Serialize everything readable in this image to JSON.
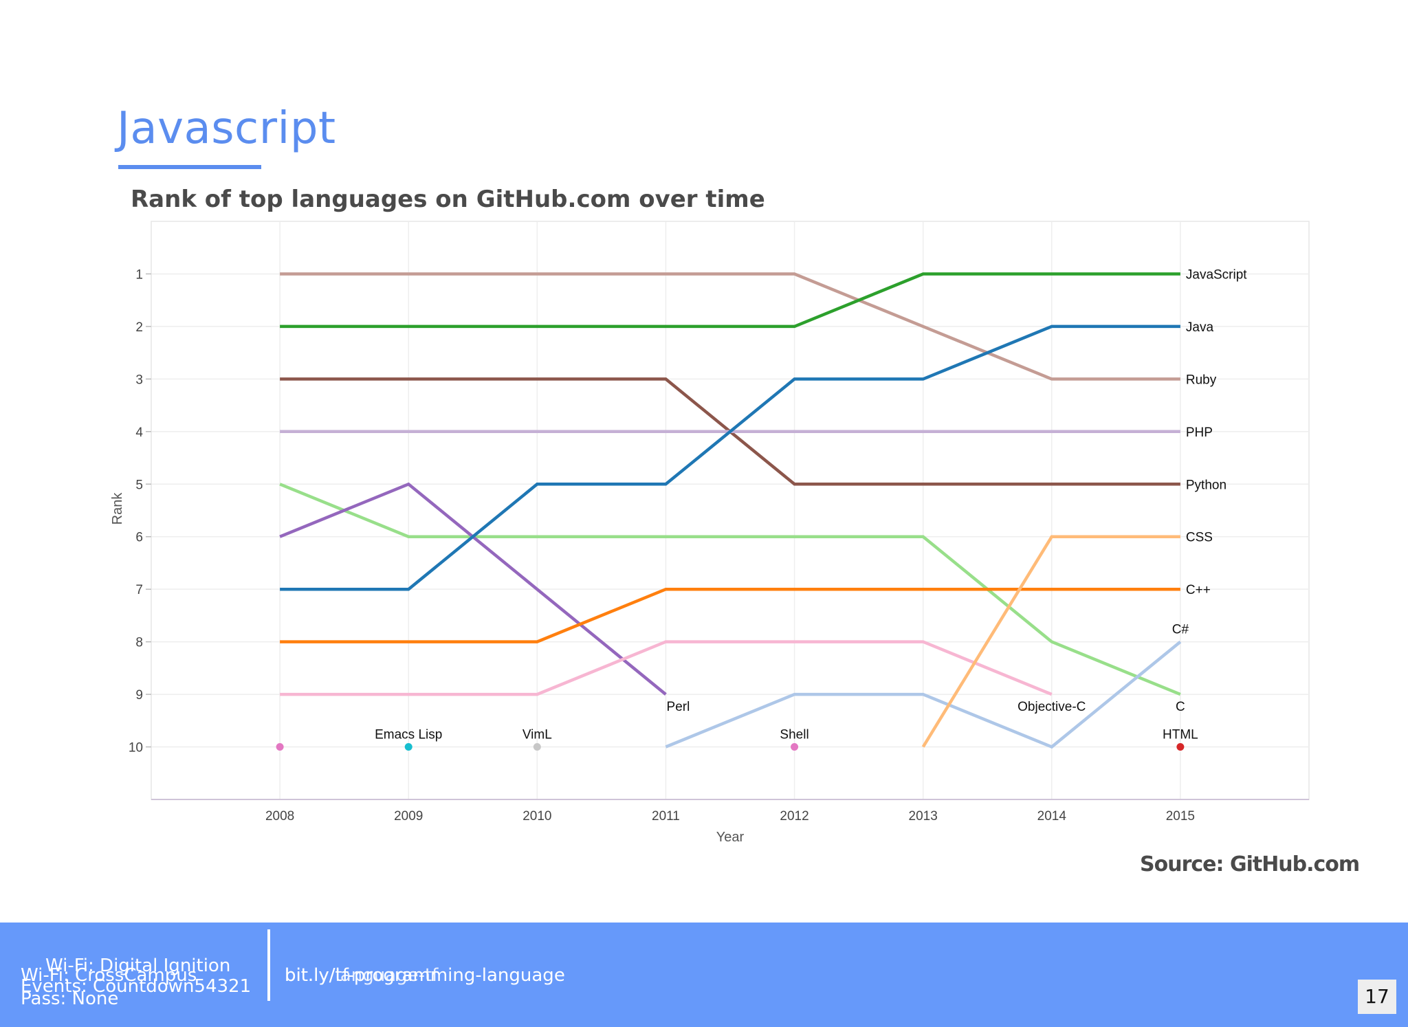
{
  "slide": {
    "title": "Javascript",
    "page_number": "17"
  },
  "footer": {
    "wifi_a": "Wi-Fi: Digital Ignition",
    "wifi_b": "Wi-Fi: CrossCampus",
    "pass_a": "Events: Countdown54321",
    "pass_b": "Pass: None",
    "link_a": "bit.ly/tf-programming-language",
    "link_b": "bit.ly/language-tf"
  },
  "source": "Source: GitHub.com",
  "chart_data": {
    "type": "line",
    "title": "Rank of top languages on GitHub.com over time",
    "xlabel": "Year",
    "ylabel": "Rank",
    "x": [
      2008,
      2009,
      2010,
      2011,
      2012,
      2013,
      2014,
      2015
    ],
    "yticks": [
      1,
      2,
      3,
      4,
      5,
      6,
      7,
      8,
      9,
      10
    ],
    "xlim": [
      2007,
      2016
    ],
    "ylim": [
      11,
      0
    ],
    "y_inverted": true,
    "grid": true,
    "series": [
      {
        "name": "Ruby",
        "color": "#c49c94",
        "points": [
          [
            2008,
            1
          ],
          [
            2009,
            1
          ],
          [
            2010,
            1
          ],
          [
            2011,
            1
          ],
          [
            2012,
            1
          ],
          [
            2013,
            2
          ],
          [
            2014,
            3
          ],
          [
            2015,
            3
          ]
        ]
      },
      {
        "name": "JavaScript",
        "color": "#2ca02c",
        "points": [
          [
            2008,
            2
          ],
          [
            2009,
            2
          ],
          [
            2010,
            2
          ],
          [
            2011,
            2
          ],
          [
            2012,
            2
          ],
          [
            2013,
            1
          ],
          [
            2014,
            1
          ],
          [
            2015,
            1
          ]
        ]
      },
      {
        "name": "Python",
        "color": "#8c564b",
        "points": [
          [
            2008,
            3
          ],
          [
            2009,
            3
          ],
          [
            2010,
            3
          ],
          [
            2011,
            3
          ],
          [
            2012,
            5
          ],
          [
            2013,
            5
          ],
          [
            2014,
            5
          ],
          [
            2015,
            5
          ]
        ]
      },
      {
        "name": "PHP",
        "color": "#c5b0d5",
        "points": [
          [
            2008,
            4
          ],
          [
            2009,
            4
          ],
          [
            2010,
            4
          ],
          [
            2011,
            4
          ],
          [
            2012,
            4
          ],
          [
            2013,
            4
          ],
          [
            2014,
            4
          ],
          [
            2015,
            4
          ]
        ]
      },
      {
        "name": "C",
        "color": "#98df8a",
        "points": [
          [
            2008,
            5
          ],
          [
            2009,
            6
          ],
          [
            2010,
            6
          ],
          [
            2011,
            6
          ],
          [
            2012,
            6
          ],
          [
            2013,
            6
          ],
          [
            2014,
            8
          ],
          [
            2015,
            9
          ]
        ]
      },
      {
        "name": "Perl",
        "color": "#9467bd",
        "points": [
          [
            2008,
            6
          ],
          [
            2009,
            5
          ],
          [
            2010,
            7
          ],
          [
            2011,
            9
          ]
        ]
      },
      {
        "name": "Java",
        "color": "#1f77b4",
        "points": [
          [
            2008,
            7
          ],
          [
            2009,
            7
          ],
          [
            2010,
            5
          ],
          [
            2011,
            5
          ],
          [
            2012,
            3
          ],
          [
            2013,
            3
          ],
          [
            2014,
            2
          ],
          [
            2015,
            2
          ]
        ]
      },
      {
        "name": "C++",
        "color": "#ff7f0e",
        "points": [
          [
            2008,
            8
          ],
          [
            2009,
            8
          ],
          [
            2010,
            8
          ],
          [
            2011,
            7
          ],
          [
            2012,
            7
          ],
          [
            2013,
            7
          ],
          [
            2014,
            7
          ],
          [
            2015,
            7
          ]
        ]
      },
      {
        "name": "Objective-C",
        "color": "#f7b6d2",
        "points": [
          [
            2008,
            9
          ],
          [
            2009,
            9
          ],
          [
            2010,
            9
          ],
          [
            2011,
            8
          ],
          [
            2012,
            8
          ],
          [
            2013,
            8
          ],
          [
            2014,
            9
          ]
        ]
      },
      {
        "name": "C#",
        "color": "#aec7e8",
        "points": [
          [
            2011,
            10
          ],
          [
            2012,
            9
          ],
          [
            2013,
            9
          ],
          [
            2014,
            10
          ],
          [
            2015,
            8
          ]
        ]
      },
      {
        "name": "CSS",
        "color": "#ffbb78",
        "points": [
          [
            2013,
            10
          ],
          [
            2014,
            6
          ],
          [
            2015,
            6
          ]
        ]
      }
    ],
    "points": [
      {
        "name": "Emacs Lisp",
        "x": 2009,
        "y": 10,
        "color": "#17becf"
      },
      {
        "name": "VimL",
        "x": 2010,
        "y": 10,
        "color": "#c7c7c7"
      },
      {
        "name": "Shell",
        "x": 2012,
        "y": 10,
        "color": "#e377c2"
      },
      {
        "name": "HTML",
        "x": 2015,
        "y": 10,
        "color": "#d62728"
      },
      {
        "name": "",
        "x": 2008,
        "y": 10,
        "color": "#e377c2"
      }
    ],
    "annotations": [
      {
        "text": "JavaScript",
        "x": 2015,
        "y": 1,
        "pos": "right"
      },
      {
        "text": "Java",
        "x": 2015,
        "y": 2,
        "pos": "right"
      },
      {
        "text": "Ruby",
        "x": 2015,
        "y": 3,
        "pos": "right"
      },
      {
        "text": "PHP",
        "x": 2015,
        "y": 4,
        "pos": "right"
      },
      {
        "text": "Python",
        "x": 2015,
        "y": 5,
        "pos": "right"
      },
      {
        "text": "CSS",
        "x": 2015,
        "y": 6,
        "pos": "right"
      },
      {
        "text": "C++",
        "x": 2015,
        "y": 7,
        "pos": "right"
      },
      {
        "text": "C#",
        "x": 2015,
        "y": 8,
        "pos": "above"
      },
      {
        "text": "C",
        "x": 2015,
        "y": 9,
        "pos": "below"
      },
      {
        "text": "Perl",
        "x": 2011,
        "y": 9,
        "pos": "below"
      },
      {
        "text": "Objective-C",
        "x": 2014,
        "y": 9,
        "pos": "below"
      },
      {
        "text": "Emacs Lisp",
        "x": 2009,
        "y": 10,
        "pos": "above"
      },
      {
        "text": "VimL",
        "x": 2010,
        "y": 10,
        "pos": "above"
      },
      {
        "text": "Shell",
        "x": 2012,
        "y": 10,
        "pos": "above"
      },
      {
        "text": "HTML",
        "x": 2015,
        "y": 10,
        "pos": "above"
      }
    ]
  }
}
